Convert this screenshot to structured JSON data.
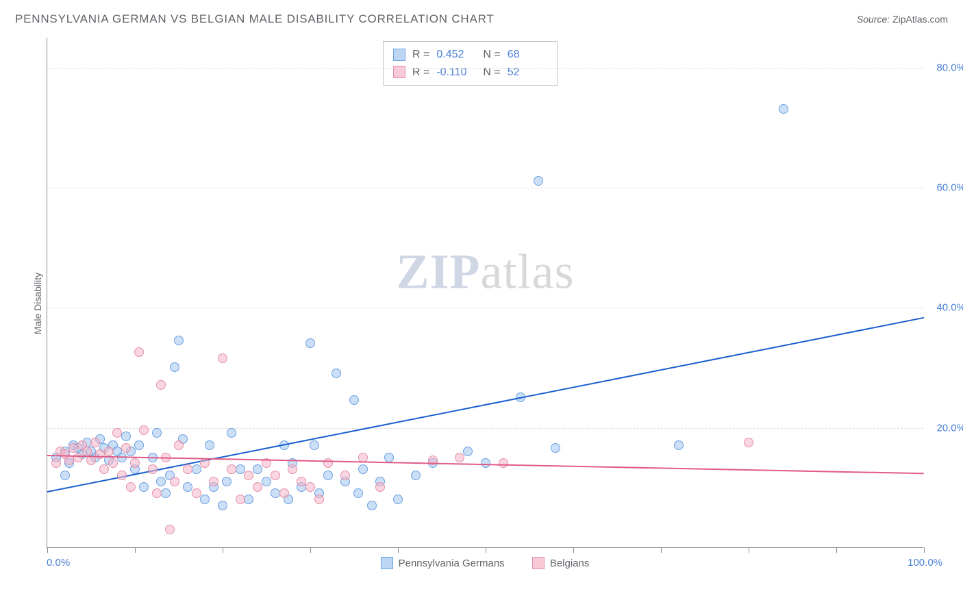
{
  "title": "PENNSYLVANIA GERMAN VS BELGIAN MALE DISABILITY CORRELATION CHART",
  "source_label": "Source:",
  "source_value": "ZipAtlas.com",
  "y_axis_label": "Male Disability",
  "watermark_a": "ZIP",
  "watermark_b": "atlas",
  "chart": {
    "type": "scatter",
    "xlim": [
      0,
      100
    ],
    "ylim": [
      0,
      85
    ],
    "x_ticks": [
      0,
      10,
      20,
      30,
      40,
      50,
      60,
      70,
      80,
      90,
      100
    ],
    "x_tick_labels": {
      "0": "0.0%",
      "100": "100.0%"
    },
    "y_ticks": [
      20,
      40,
      60,
      80
    ],
    "y_tick_labels": {
      "20": "20.0%",
      "40": "40.0%",
      "60": "60.0%",
      "80": "80.0%"
    },
    "grid_color": "#dcdcdc",
    "axis_color": "#888888",
    "background_color": "#ffffff",
    "marker_size": 14,
    "series": [
      {
        "id": "s1",
        "name": "Pennsylvania Germans",
        "color_fill": "rgba(160,196,240,0.55)",
        "color_stroke": "#6b9fe0",
        "trend_color": "#1a5fd0",
        "r_value": "0.452",
        "n_value": "68",
        "trend": {
          "x1": 0,
          "y1": 9.5,
          "x2": 100,
          "y2": 38.5
        },
        "points": [
          [
            1,
            15
          ],
          [
            2,
            16
          ],
          [
            2.5,
            14
          ],
          [
            3,
            17
          ],
          [
            3.5,
            16.5
          ],
          [
            4,
            15.5
          ],
          [
            4.5,
            17.5
          ],
          [
            5,
            16
          ],
          [
            5.5,
            15
          ],
          [
            6,
            18
          ],
          [
            6.5,
            16.5
          ],
          [
            7,
            14.5
          ],
          [
            7.5,
            17
          ],
          [
            8,
            16
          ],
          [
            8.5,
            15
          ],
          [
            9,
            18.5
          ],
          [
            9.5,
            16
          ],
          [
            10,
            13
          ],
          [
            10.5,
            17
          ],
          [
            11,
            10
          ],
          [
            12,
            15
          ],
          [
            12.5,
            19
          ],
          [
            13,
            11
          ],
          [
            13.5,
            9
          ],
          [
            14,
            12
          ],
          [
            14.5,
            30
          ],
          [
            15,
            34.5
          ],
          [
            15.5,
            18
          ],
          [
            16,
            10
          ],
          [
            17,
            13
          ],
          [
            18,
            8
          ],
          [
            18.5,
            17
          ],
          [
            19,
            10
          ],
          [
            20,
            7
          ],
          [
            20.5,
            11
          ],
          [
            21,
            19
          ],
          [
            22,
            13
          ],
          [
            23,
            8
          ],
          [
            24,
            13
          ],
          [
            25,
            11
          ],
          [
            26,
            9
          ],
          [
            27,
            17
          ],
          [
            27.5,
            8
          ],
          [
            28,
            14
          ],
          [
            29,
            10
          ],
          [
            30,
            34
          ],
          [
            30.5,
            17
          ],
          [
            31,
            9
          ],
          [
            32,
            12
          ],
          [
            33,
            29
          ],
          [
            34,
            11
          ],
          [
            35,
            24.5
          ],
          [
            35.5,
            9
          ],
          [
            36,
            13
          ],
          [
            37,
            7
          ],
          [
            38,
            11
          ],
          [
            39,
            15
          ],
          [
            40,
            8
          ],
          [
            42,
            12
          ],
          [
            44,
            14
          ],
          [
            48,
            16
          ],
          [
            50,
            14
          ],
          [
            54,
            25
          ],
          [
            56,
            61
          ],
          [
            58,
            16.5
          ],
          [
            72,
            17
          ],
          [
            84,
            73
          ],
          [
            2,
            12
          ]
        ]
      },
      {
        "id": "s2",
        "name": "Belgians",
        "color_fill": "rgba(245,180,200,0.55)",
        "color_stroke": "#e38fa8",
        "trend_color": "#e05a85",
        "r_value": "-0.110",
        "n_value": "52",
        "trend": {
          "x1": 0,
          "y1": 15.5,
          "x2": 100,
          "y2": 12.5
        },
        "points": [
          [
            1,
            14
          ],
          [
            1.5,
            16
          ],
          [
            2,
            15.5
          ],
          [
            2.5,
            14.5
          ],
          [
            3,
            16.5
          ],
          [
            3.5,
            15
          ],
          [
            4,
            17
          ],
          [
            4.5,
            16
          ],
          [
            5,
            14.5
          ],
          [
            5.5,
            17.5
          ],
          [
            6,
            15.5
          ],
          [
            6.5,
            13
          ],
          [
            7,
            16
          ],
          [
            7.5,
            14
          ],
          [
            8,
            19
          ],
          [
            8.5,
            12
          ],
          [
            9,
            16.5
          ],
          [
            9.5,
            10
          ],
          [
            10,
            14
          ],
          [
            10.5,
            32.5
          ],
          [
            11,
            19.5
          ],
          [
            12,
            13
          ],
          [
            12.5,
            9
          ],
          [
            13,
            27
          ],
          [
            13.5,
            15
          ],
          [
            14,
            3
          ],
          [
            14.5,
            11
          ],
          [
            15,
            17
          ],
          [
            16,
            13
          ],
          [
            17,
            9
          ],
          [
            18,
            14
          ],
          [
            19,
            11
          ],
          [
            20,
            31.5
          ],
          [
            21,
            13
          ],
          [
            22,
            8
          ],
          [
            23,
            12
          ],
          [
            24,
            10
          ],
          [
            25,
            14
          ],
          [
            26,
            12
          ],
          [
            27,
            9
          ],
          [
            28,
            13
          ],
          [
            29,
            11
          ],
          [
            30,
            10
          ],
          [
            31,
            8
          ],
          [
            32,
            14
          ],
          [
            34,
            12
          ],
          [
            36,
            15
          ],
          [
            38,
            10
          ],
          [
            44,
            14.5
          ],
          [
            47,
            15
          ],
          [
            52,
            14
          ],
          [
            80,
            17.5
          ]
        ]
      }
    ],
    "legend_position": "bottom-center",
    "stats_box_position": "top-center"
  }
}
